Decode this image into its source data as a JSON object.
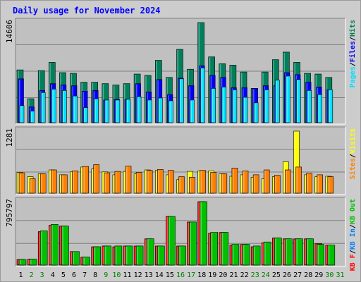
{
  "title": "Daily usage for November 2024",
  "chart_data": {
    "type": "bar",
    "title": "Daily usage for November 2024",
    "days": [
      "1",
      "2",
      "3",
      "4",
      "5",
      "6",
      "7",
      "8",
      "9",
      "10",
      "11",
      "12",
      "13",
      "14",
      "15",
      "16",
      "17",
      "18",
      "19",
      "20",
      "21",
      "22",
      "23",
      "24",
      "25",
      "26",
      "27",
      "28",
      "29",
      "30",
      "31"
    ],
    "weekend_color": "#008000",
    "weekday_color": "#000000",
    "weekend_days": [
      "2",
      "3",
      "9",
      "10",
      "16",
      "17",
      "23",
      "24",
      "30",
      "31"
    ],
    "panels": [
      {
        "id": "hits-files-pages",
        "ymax_label": "14606",
        "ylim": [
          0,
          14606
        ],
        "series": [
          {
            "name": "Hits",
            "color": "#00805c",
            "values": [
              7700,
              3500,
              7600,
              8800,
              7300,
              7200,
              5900,
              5900,
              5700,
              5500,
              5700,
              7100,
              6900,
              9100,
              6600,
              10700,
              7800,
              14606,
              9600,
              8600,
              8400,
              7400,
              5000,
              7400,
              9200,
              10300,
              8800,
              7200,
              7100,
              6600,
              0
            ]
          },
          {
            "name": "Files",
            "color": "#0000ff",
            "values": [
              6400,
              2300,
              4700,
              5700,
              5500,
              5400,
              4600,
              4700,
              3300,
              3400,
              3400,
              5700,
              4500,
              6300,
              4100,
              6500,
              5400,
              8300,
              6900,
              6600,
              5100,
              5100,
              5000,
              5400,
              5400,
              7300,
              7000,
              5900,
              5200,
              4800,
              0
            ]
          },
          {
            "name": "Pages",
            "color": "#00e0ff",
            "values": [
              2500,
              1700,
              4400,
              4900,
              4700,
              3900,
              2200,
              3500,
              3300,
              3300,
              3400,
              3800,
              3300,
              3600,
              3200,
              6400,
              3300,
              8000,
              5000,
              5200,
              4800,
              3700,
              2900,
              4800,
              6200,
              6800,
              6300,
              4700,
              4100,
              4800,
              0
            ]
          }
        ]
      },
      {
        "id": "sites-visits",
        "ymax_label": "1281",
        "ylim": [
          0,
          1281
        ],
        "series": [
          {
            "name": "Visits",
            "color": "#ffff00",
            "values": [
              430,
              340,
              400,
              480,
              380,
              440,
              540,
              500,
              440,
              380,
              450,
              400,
              480,
              470,
              380,
              280,
              450,
              460,
              460,
              400,
              350,
              380,
              330,
              300,
              340,
              650,
              1281,
              380,
              340,
              350,
              0
            ]
          },
          {
            "name": "Sites",
            "color": "#ff8000",
            "values": [
              420,
              300,
              400,
              480,
              380,
              460,
              550,
              590,
              420,
              450,
              560,
              430,
              470,
              490,
              470,
              340,
              330,
              470,
              430,
              400,
              520,
              460,
              380,
              480,
              370,
              480,
              540,
              410,
              380,
              340,
              0
            ]
          }
        ]
      },
      {
        "id": "kbytes",
        "ymax_label": "795797",
        "ylim": [
          0,
          795797
        ],
        "series": [
          {
            "name": "KB F",
            "color": "#ff0000",
            "values": [
              70000,
              75000,
              420000,
              500000,
              490000,
              170000,
              100000,
              230000,
              240000,
              230000,
              240000,
              240000,
              330000,
              240000,
              610000,
              240000,
              540000,
              795797,
              400000,
              410000,
              250000,
              260000,
              230000,
              280000,
              340000,
              330000,
              330000,
              330000,
              270000,
              250000,
              0
            ]
          },
          {
            "name": "KB In",
            "color": "#0080ff",
            "values": [
              0,
              0,
              0,
              0,
              0,
              0,
              0,
              0,
              0,
              0,
              0,
              0,
              0,
              0,
              0,
              0,
              0,
              0,
              0,
              0,
              0,
              0,
              0,
              0,
              0,
              0,
              0,
              0,
              0,
              0,
              0
            ]
          },
          {
            "name": "KB Out",
            "color": "#00c000",
            "values": [
              70000,
              75000,
              430000,
              510000,
              490000,
              170000,
              100000,
              230000,
              240000,
              240000,
              240000,
              240000,
              330000,
              240000,
              610000,
              240000,
              540000,
              795797,
              410000,
              410000,
              260000,
              260000,
              240000,
              290000,
              340000,
              330000,
              330000,
              330000,
              260000,
              250000,
              0
            ]
          }
        ]
      }
    ],
    "legend_right": [
      {
        "items": [
          {
            "text": "Pages",
            "color": "#00e0ff"
          },
          {
            "text": "/",
            "color": "#000000"
          },
          {
            "text": "Files",
            "color": "#0000ff"
          },
          {
            "text": "/",
            "color": "#000000"
          },
          {
            "text": "Hits",
            "color": "#00805c"
          }
        ]
      },
      {
        "items": [
          {
            "text": "Sites",
            "color": "#ff8000"
          },
          {
            "text": "/",
            "color": "#000000"
          },
          {
            "text": "Visits",
            "color": "#ffff00"
          }
        ]
      },
      {
        "items": [
          {
            "text": "KB F",
            "color": "#ff0000"
          },
          {
            "text": "/",
            "color": "#000000"
          },
          {
            "text": "KB In",
            "color": "#0080ff"
          },
          {
            "text": "/",
            "color": "#000000"
          },
          {
            "text": "KB Out",
            "color": "#00c000"
          }
        ]
      }
    ]
  }
}
